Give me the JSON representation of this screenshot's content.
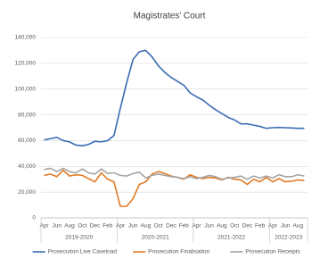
{
  "chart_data": {
    "type": "line",
    "title": "Magistrates’ Court",
    "categories": [
      "Apr",
      null,
      "Jun",
      null,
      "Aug",
      null,
      "Oct",
      null,
      "Dec",
      null,
      "Feb",
      null,
      "Apr",
      null,
      "Jun",
      null,
      "Aug",
      null,
      "Oct",
      null,
      "Dec",
      null,
      "Feb",
      null,
      "Apr",
      null,
      "Jun",
      null,
      "Aug",
      null,
      "Oct",
      null,
      "Dec",
      null,
      "Feb",
      null,
      "Apr",
      null,
      "Jun",
      null,
      "Aug",
      null
    ],
    "year_groups": [
      "2019-2020",
      "2020-2021",
      "2021-2022",
      "2022-2023"
    ],
    "series": [
      {
        "name": "Prosecution Live Caseload",
        "color": "#3b6db3",
        "values": [
          60500,
          61500,
          62500,
          60000,
          59000,
          56500,
          56000,
          57000,
          59500,
          59000,
          60000,
          64000,
          85000,
          105000,
          123000,
          129000,
          130000,
          125000,
          118000,
          113000,
          109000,
          106000,
          103000,
          97000,
          94000,
          91500,
          87500,
          84000,
          81000,
          78000,
          76000,
          73000,
          73000,
          72000,
          71000,
          69500,
          70000,
          70200,
          70000,
          69800,
          69500,
          69500
        ]
      },
      {
        "name": "Prosecution Finalisation",
        "color": "#e07b27",
        "values": [
          33000,
          34000,
          32000,
          37000,
          32500,
          33500,
          33000,
          30500,
          28000,
          35000,
          30000,
          28000,
          9000,
          9000,
          15000,
          26000,
          28000,
          34000,
          36000,
          34500,
          32500,
          31500,
          30000,
          33500,
          31500,
          30500,
          31500,
          31000,
          29500,
          31500,
          30000,
          29500,
          26000,
          30000,
          28000,
          31500,
          28000,
          30500,
          28000,
          28500,
          29500,
          29000
        ]
      },
      {
        "name": "Prosecution Receipts",
        "color": "#a5a5a5",
        "values": [
          37500,
          38500,
          36000,
          38500,
          36000,
          35000,
          38000,
          35000,
          34000,
          38000,
          34500,
          35000,
          33000,
          32500,
          34500,
          35500,
          31000,
          33000,
          34000,
          33000,
          32000,
          31500,
          30500,
          32000,
          30500,
          31500,
          33000,
          32000,
          30000,
          31000,
          31500,
          32500,
          30000,
          32500,
          31000,
          32500,
          31000,
          33500,
          32000,
          32000,
          33500,
          32500
        ]
      }
    ],
    "ylim": [
      0,
      140000
    ],
    "yticks": [
      0,
      {
        "value": 20000,
        "label": "20,000"
      },
      {
        "value": 40000,
        "label": "40,000"
      },
      {
        "value": 60000,
        "label": "60,000"
      },
      {
        "value": 80000,
        "label": "80,000"
      },
      {
        "value": 100000,
        "label": "100,000"
      },
      {
        "value": 120000,
        "label": "120,000"
      },
      {
        "value": 140000,
        "label": "140,000"
      }
    ],
    "grid": true,
    "legend": "bottom"
  }
}
